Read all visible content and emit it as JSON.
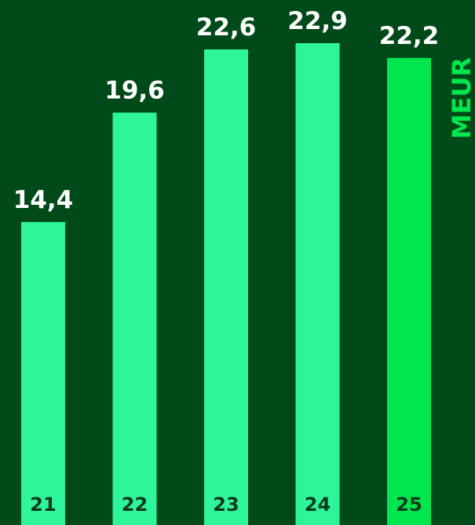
{
  "chart_data": {
    "type": "bar",
    "categories": [
      "21",
      "22",
      "23",
      "24",
      "25"
    ],
    "values": [
      14.4,
      19.6,
      22.6,
      22.9,
      22.2
    ],
    "value_labels": [
      "14,4",
      "19,6",
      "22,6",
      "22,9",
      "22,2"
    ],
    "unit": "MEUR",
    "ylim": [
      0,
      25
    ],
    "grid": false,
    "highlight_index": 4
  },
  "colors": {
    "background": "#004a1a",
    "bar": "#2ef59a",
    "bar_highlight": "#00e64e",
    "value_text": "#ffffff",
    "category_text": "#0b3a1c",
    "unit_text": "#00e64e"
  }
}
